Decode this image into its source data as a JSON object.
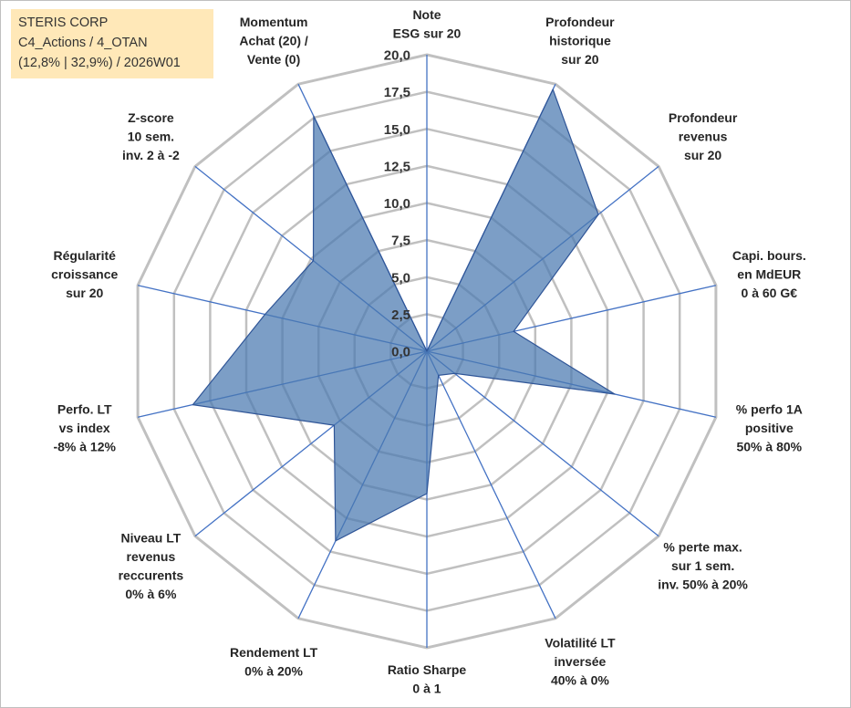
{
  "info": {
    "line1": "STERIS CORP",
    "line2": "C4_Actions / 4_OTAN",
    "line3": "(12,8% | 32,9%) / 2026W01"
  },
  "colors": {
    "grid": "#c0c0c0",
    "spoke": "#4472c4",
    "fill": "#4a78b0",
    "stroke": "#2f5597"
  },
  "chart_data": {
    "type": "radar",
    "rlim": [
      0,
      20
    ],
    "tick_values": [
      0,
      2.5,
      5,
      7.5,
      10,
      12.5,
      15,
      17.5,
      20
    ],
    "tick_labels": [
      "0,0",
      "2,5",
      "5,0",
      "7,5",
      "10,0",
      "12,5",
      "15,0",
      "17,5",
      "20,0"
    ],
    "grid": true,
    "axes": [
      {
        "label": [
          "Note",
          "ESG sur 20"
        ],
        "value": 0
      },
      {
        "label": [
          "Profondeur",
          "historique",
          "sur 20"
        ],
        "value": 19.6
      },
      {
        "label": [
          "Profondeur",
          "revenus",
          "sur 20"
        ],
        "value": 14.8
      },
      {
        "label": [
          "Capi. bours.",
          "en MdEUR",
          "0 à 60 G€"
        ],
        "value": 6.0
      },
      {
        "label": [
          "% perfo 1A",
          "positive",
          "50% à 80%"
        ],
        "value": 13.0
      },
      {
        "label": [
          "% perte max.",
          "sur 1 sem.",
          "inv. 50% à 20%"
        ],
        "value": 2.4
      },
      {
        "label": [
          "Volatilité LT",
          "inversée",
          "40% à 0%"
        ],
        "value": 1.8
      },
      {
        "label": [
          "Ratio Sharpe",
          "0 à 1"
        ],
        "value": 9.6
      },
      {
        "label": [
          "Rendement LT",
          "0% à 20%"
        ],
        "value": 14.2
      },
      {
        "label": [
          "Niveau LT",
          "revenus",
          "reccurents",
          "0% à 6%"
        ],
        "value": 8.0
      },
      {
        "label": [
          "Perfo. LT",
          "vs index",
          "-8% à 12%"
        ],
        "value": 16.2
      },
      {
        "label": [
          "Régularité",
          "croissance",
          "sur 20"
        ],
        "value": 11.2
      },
      {
        "label": [
          "Z-score",
          "10 sem.",
          "inv. 2 à -2"
        ],
        "value": 9.8
      },
      {
        "label": [
          "Momentum",
          "Achat (20) /",
          "Vente (0)"
        ],
        "value": 17.6
      }
    ]
  }
}
